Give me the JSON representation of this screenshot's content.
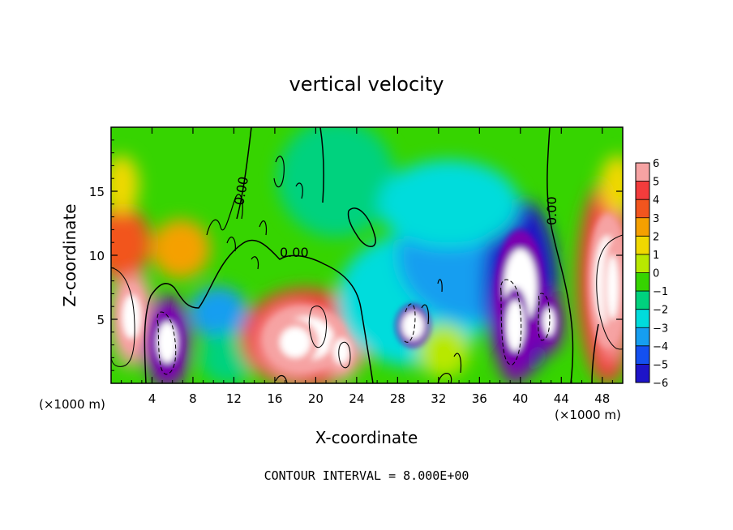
{
  "chart_data": {
    "type": "heatmap",
    "title": "vertical velocity",
    "xlabel": "X-coordinate",
    "ylabel": "Z-coordinate",
    "x_unit_label": "(×1000 m)",
    "x_unit_label_right": "(×1000 m)",
    "xlim": [
      0,
      50
    ],
    "ylim": [
      0,
      20
    ],
    "x_ticks": [
      4,
      8,
      12,
      16,
      20,
      24,
      28,
      32,
      36,
      40,
      44,
      48
    ],
    "y_ticks": [
      5,
      10,
      15
    ],
    "colorbar": {
      "levels": [
        6,
        5,
        4,
        3,
        2,
        1,
        0,
        -1,
        -2,
        -3,
        -4,
        -5,
        -6
      ],
      "colors": [
        "#f6a3a3",
        "#f23c3c",
        "#f2551e",
        "#f5a000",
        "#f0d800",
        "#b8e800",
        "#36d400",
        "#00d27e",
        "#00dcdc",
        "#169ef0",
        "#1450f0",
        "#1e14c8",
        "#7a00b0"
      ]
    },
    "contour_labels": [
      "0.00",
      "0.00",
      "0.00"
    ],
    "footer": "CONTOUR INTERVAL = 8.000E+00",
    "features": [
      {
        "x": 2.0,
        "z": 5.2,
        "rx": 1.8,
        "rz": 3.4,
        "value": 6
      },
      {
        "x": 1.0,
        "z": 11.0,
        "rx": 2.5,
        "rz": 2.5,
        "value": 4
      },
      {
        "x": 5.5,
        "z": 3.2,
        "rx": 2.0,
        "rz": 3.2,
        "value": -6
      },
      {
        "x": 6.8,
        "z": 10.5,
        "rx": 2.5,
        "rz": 2.0,
        "value": 3
      },
      {
        "x": 10.5,
        "z": 5.5,
        "rx": 2.5,
        "rz": 1.8,
        "value": -3
      },
      {
        "x": 11.5,
        "z": 2.0,
        "rx": 2.5,
        "rz": 1.8,
        "value": -1
      },
      {
        "x": 19.0,
        "z": 3.5,
        "rx": 5.5,
        "rz": 3.4,
        "value": 5
      },
      {
        "x": 18.0,
        "z": 3.2,
        "rx": 3.0,
        "rz": 2.4,
        "value": 6
      },
      {
        "x": 22.5,
        "z": 2.5,
        "rx": 1.6,
        "rz": 2.0,
        "value": 6
      },
      {
        "x": 29.5,
        "z": 4.5,
        "rx": 2.2,
        "rz": 2.2,
        "value": -6
      },
      {
        "x": 29.5,
        "z": 6.5,
        "rx": 6.5,
        "rz": 4.5,
        "value": -2
      },
      {
        "x": 35.5,
        "z": 10.0,
        "rx": 6.5,
        "rz": 4.5,
        "value": -3
      },
      {
        "x": 40.0,
        "z": 7.5,
        "rx": 3.2,
        "rz": 6.0,
        "value": -5
      },
      {
        "x": 39.5,
        "z": 4.5,
        "rx": 1.8,
        "rz": 4.0,
        "value": -6
      },
      {
        "x": 42.8,
        "z": 4.8,
        "rx": 1.2,
        "rz": 2.2,
        "value": -6
      },
      {
        "x": 32.5,
        "z": 2.5,
        "rx": 2.2,
        "rz": 1.8,
        "value": 1
      },
      {
        "x": 48.5,
        "z": 8.0,
        "rx": 2.5,
        "rz": 7.0,
        "value": 5
      },
      {
        "x": 49.0,
        "z": 7.5,
        "rx": 1.2,
        "rz": 5.0,
        "value": 6
      },
      {
        "x": 1.0,
        "z": 15.5,
        "rx": 1.5,
        "rz": 2.0,
        "value": 2
      },
      {
        "x": 49.5,
        "z": 15.5,
        "rx": 1.5,
        "rz": 2.0,
        "value": 2
      },
      {
        "x": 22.0,
        "z": 16.0,
        "rx": 5.0,
        "rz": 4.0,
        "value": -1
      },
      {
        "x": 33.0,
        "z": 14.0,
        "rx": 6.0,
        "rz": 3.0,
        "value": -2
      }
    ]
  }
}
